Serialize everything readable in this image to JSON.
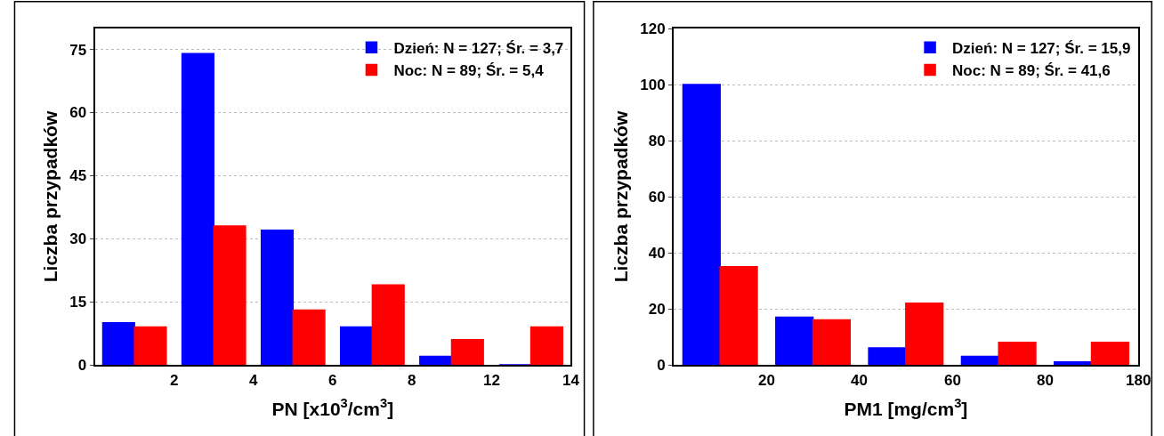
{
  "chart_data": [
    {
      "type": "bar",
      "categories": [
        null,
        null,
        null,
        null,
        null,
        null
      ],
      "annotations": [
        "2",
        "4",
        "6",
        "8",
        "12",
        "14"
      ],
      "xlabel": "PN [x10$^{3}$/cm$^{3}$]",
      "ylabel": "Liczba przypadków",
      "ylim": [
        0,
        80
      ],
      "yticks": [
        0,
        15,
        30,
        45,
        60,
        75
      ],
      "series": [
        {
          "name": "Dzień: N = 127; Śr. = 3,7",
          "color": "#0000ff",
          "values": [
            10,
            74,
            32,
            9,
            2,
            0
          ]
        },
        {
          "name": "Noc: N = 89; Śr. = 5,4",
          "color": "#ff0000",
          "values": [
            9,
            33,
            13,
            19,
            6,
            9
          ]
        }
      ],
      "grid": "y",
      "legend": "top right"
    },
    {
      "type": "bar",
      "categories": [
        null,
        null,
        null,
        null,
        null
      ],
      "annotations": [
        "20",
        "40",
        "60",
        "80",
        "180"
      ],
      "xlabel": "PM1 [mg/cm$^{3}$]",
      "ylabel": "Liczba przypadków",
      "ylim": [
        0,
        120
      ],
      "yticks": [
        0,
        20,
        40,
        60,
        80,
        100,
        120
      ],
      "series": [
        {
          "name": "Dzień: N = 127; Śr. = 15,9",
          "color": "#0000ff",
          "values": [
            100,
            17,
            6,
            3,
            1
          ]
        },
        {
          "name": "Noc: N = 89; Śr. = 41,6",
          "color": "#ff0000",
          "values": [
            35,
            16,
            22,
            8,
            8
          ]
        }
      ],
      "grid": "y",
      "legend": "top right"
    }
  ]
}
